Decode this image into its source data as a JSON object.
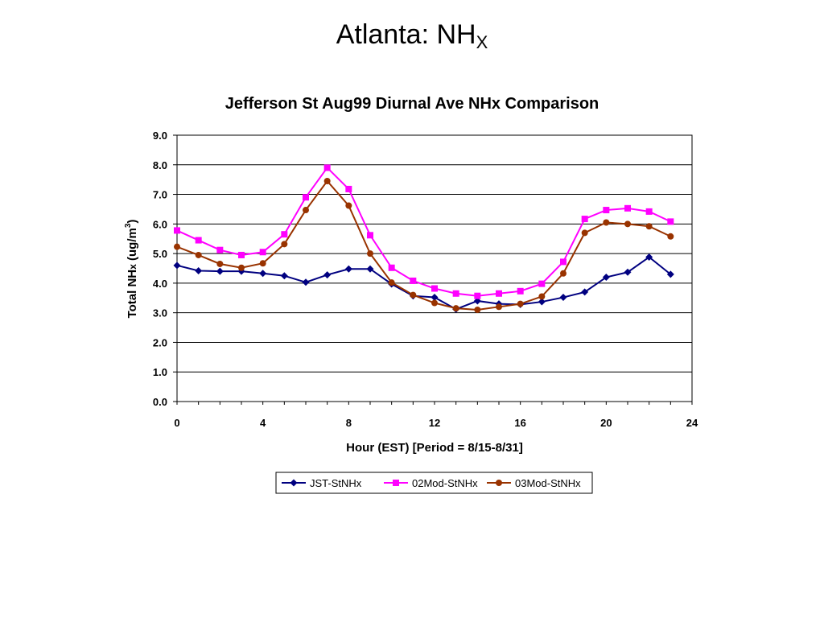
{
  "slide": {
    "title_main": "Atlanta: NH",
    "title_sub": "X"
  },
  "chart_data": {
    "type": "line",
    "title": "Jefferson St Aug99 Diurnal Ave NHx Comparison",
    "xlabel": "Hour (EST) [Period = 8/15-8/31]",
    "ylabel": "Total NHx (ug/m3)",
    "ylabel_parts": {
      "a": "Total NH",
      "b": "x",
      "c": " (ug/m",
      "d": "3",
      "e": ")"
    },
    "xlim": [
      0,
      24
    ],
    "ylim": [
      0,
      9
    ],
    "xticks": [
      0,
      4,
      8,
      12,
      16,
      20,
      24
    ],
    "xtick_labels": [
      "0",
      "4",
      "8",
      "12",
      "16",
      "20",
      "24"
    ],
    "yticks": [
      0,
      1,
      2,
      3,
      4,
      5,
      6,
      7,
      8,
      9
    ],
    "ytick_labels": [
      "0.0",
      "1.0",
      "2.0",
      "3.0",
      "4.0",
      "5.0",
      "6.0",
      "7.0",
      "8.0",
      "9.0"
    ],
    "grid": "horizontal",
    "legend_position": "bottom",
    "x": [
      0,
      1,
      2,
      3,
      4,
      5,
      6,
      7,
      8,
      9,
      10,
      11,
      12,
      13,
      14,
      15,
      16,
      17,
      18,
      19,
      20,
      21,
      22,
      23
    ],
    "series": [
      {
        "name": "JST-StNHx",
        "color": "#000080",
        "marker": "diamond",
        "values": [
          4.6,
          4.42,
          4.4,
          4.4,
          4.33,
          4.25,
          4.03,
          4.28,
          4.48,
          4.48,
          3.97,
          3.57,
          3.52,
          3.12,
          3.4,
          3.3,
          3.28,
          3.37,
          3.52,
          3.7,
          4.2,
          4.37,
          4.88,
          4.3
        ]
      },
      {
        "name": "02Mod-StNHx",
        "color": "#ff00ff",
        "marker": "square",
        "values": [
          5.78,
          5.45,
          5.12,
          4.95,
          5.05,
          5.65,
          6.9,
          7.9,
          7.18,
          5.62,
          4.52,
          4.08,
          3.82,
          3.65,
          3.57,
          3.65,
          3.73,
          3.98,
          4.72,
          6.17,
          6.47,
          6.53,
          6.42,
          6.08
        ]
      },
      {
        "name": "03Mod-StNHx",
        "color": "#993300",
        "marker": "circle",
        "values": [
          5.23,
          4.95,
          4.65,
          4.52,
          4.67,
          5.32,
          6.47,
          7.45,
          6.62,
          5.0,
          4.02,
          3.6,
          3.33,
          3.15,
          3.1,
          3.2,
          3.3,
          3.55,
          4.33,
          5.7,
          6.05,
          6.0,
          5.92,
          5.58
        ]
      }
    ]
  }
}
